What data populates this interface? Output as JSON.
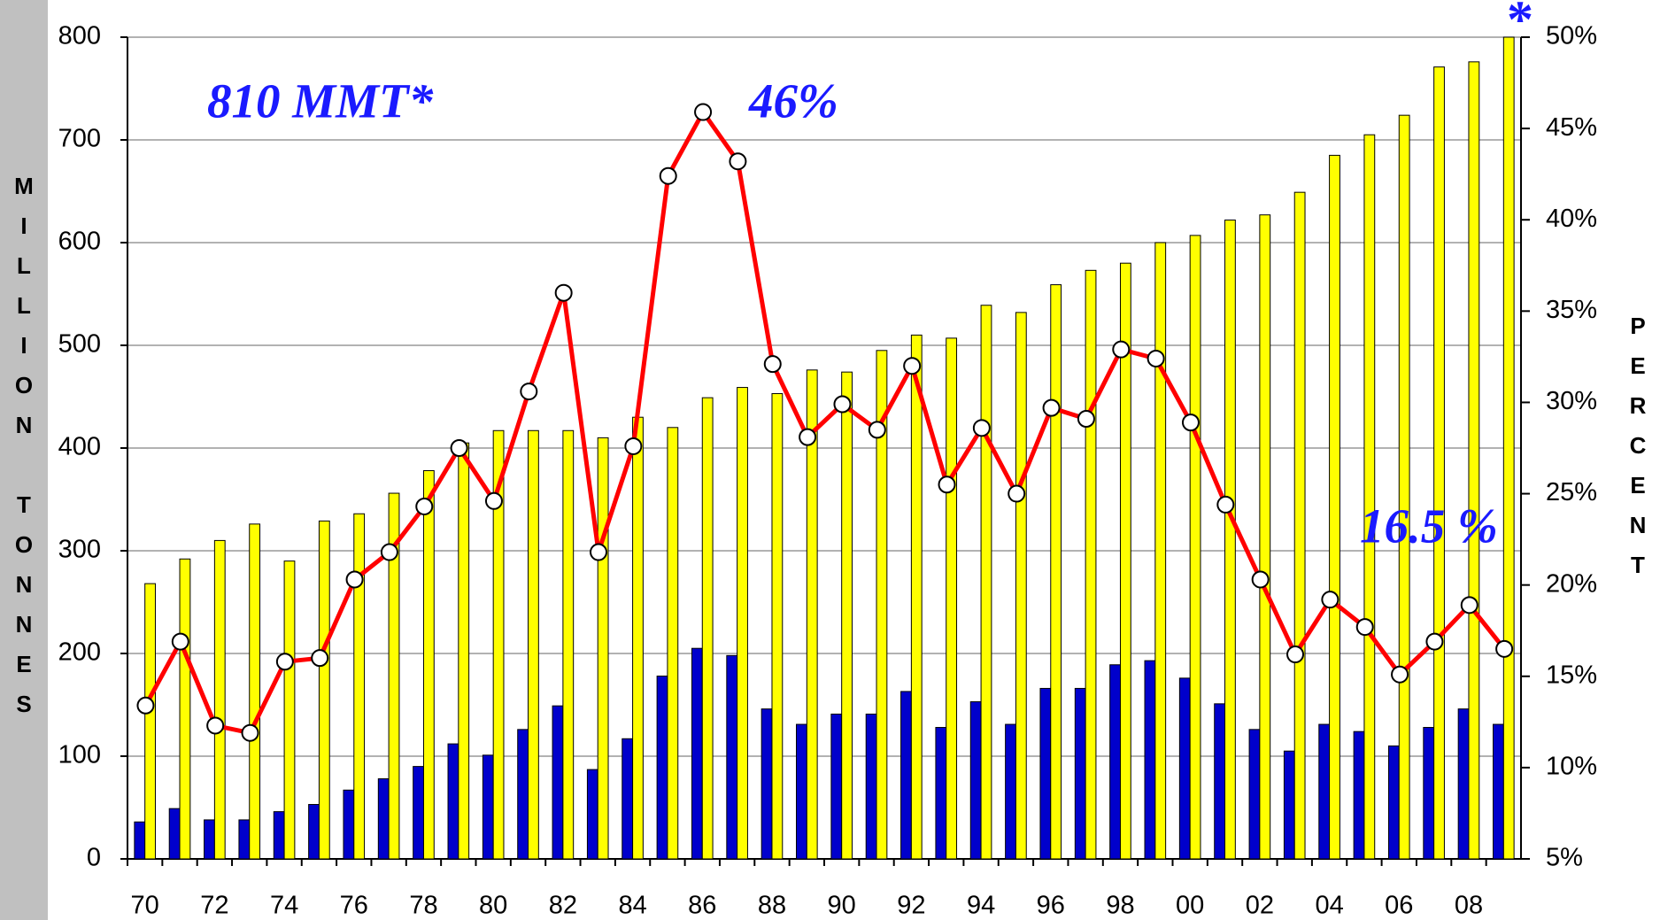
{
  "chart_data": {
    "type": "bar-line",
    "categories": [
      "70",
      null,
      "72",
      null,
      "74",
      null,
      "76",
      null,
      "78",
      null,
      "80",
      null,
      "82",
      null,
      "84",
      null,
      "86",
      null,
      "88",
      null,
      "90",
      null,
      "92",
      null,
      "94",
      null,
      "96",
      null,
      "98",
      null,
      "00",
      null,
      "02",
      null,
      "04",
      null,
      "06",
      null,
      "08",
      null
    ],
    "y_label": "MILLION TONNES",
    "y2_label": "PERCENT",
    "series": [
      {
        "type": "bar",
        "color": "#0000cc",
        "values": [
          36,
          49,
          38,
          38,
          46,
          53,
          67,
          78,
          90,
          112,
          101,
          126,
          149,
          87,
          117,
          178,
          205,
          198,
          146,
          131,
          141,
          141,
          163,
          128,
          153,
          131,
          166,
          166,
          189,
          193,
          176,
          151,
          126,
          105,
          131,
          124,
          110,
          128,
          146,
          131
        ]
      },
      {
        "type": "bar",
        "color": "#ffff00",
        "values": [
          268,
          292,
          310,
          326,
          290,
          329,
          336,
          356,
          378,
          405,
          417,
          417,
          417,
          410,
          430,
          420,
          449,
          459,
          453,
          476,
          474,
          495,
          510,
          507,
          539,
          532,
          559,
          573,
          580,
          600,
          607,
          622,
          627,
          649,
          685,
          705,
          724,
          771,
          776,
          800
        ]
      },
      {
        "type": "line",
        "axis": "y2",
        "color": "#ff0000",
        "values": [
          13.4,
          16.9,
          12.3,
          11.9,
          15.8,
          16.0,
          20.3,
          21.8,
          24.3,
          27.5,
          24.6,
          30.6,
          36.0,
          21.8,
          27.6,
          42.4,
          45.9,
          43.2,
          32.1,
          28.1,
          29.9,
          28.5,
          32.0,
          25.5,
          28.6,
          25.0,
          29.7,
          29.1,
          32.9,
          32.4,
          28.9,
          24.4,
          20.3,
          16.2,
          19.2,
          17.7,
          15.1,
          16.9,
          18.9,
          16.5
        ]
      }
    ],
    "ylim": [
      0,
      800
    ],
    "yticks": [
      0,
      100,
      200,
      300,
      400,
      500,
      600,
      700,
      800
    ],
    "y2lim": [
      5,
      50
    ],
    "y2ticks": [
      {
        "value": 5,
        "label": "5%"
      },
      {
        "value": 10,
        "label": "10%"
      },
      {
        "value": 15,
        "label": "15%"
      },
      {
        "value": 20,
        "label": "20%"
      },
      {
        "value": 25,
        "label": "25%"
      },
      {
        "value": 30,
        "label": "30%"
      },
      {
        "value": 35,
        "label": "35%"
      },
      {
        "value": 40,
        "label": "40%"
      },
      {
        "value": 45,
        "label": "45%"
      },
      {
        "value": 50,
        "label": "50%"
      }
    ],
    "grid": true,
    "annotations": [
      "810 MMT*",
      "46%",
      "16.5 %",
      "*"
    ]
  }
}
